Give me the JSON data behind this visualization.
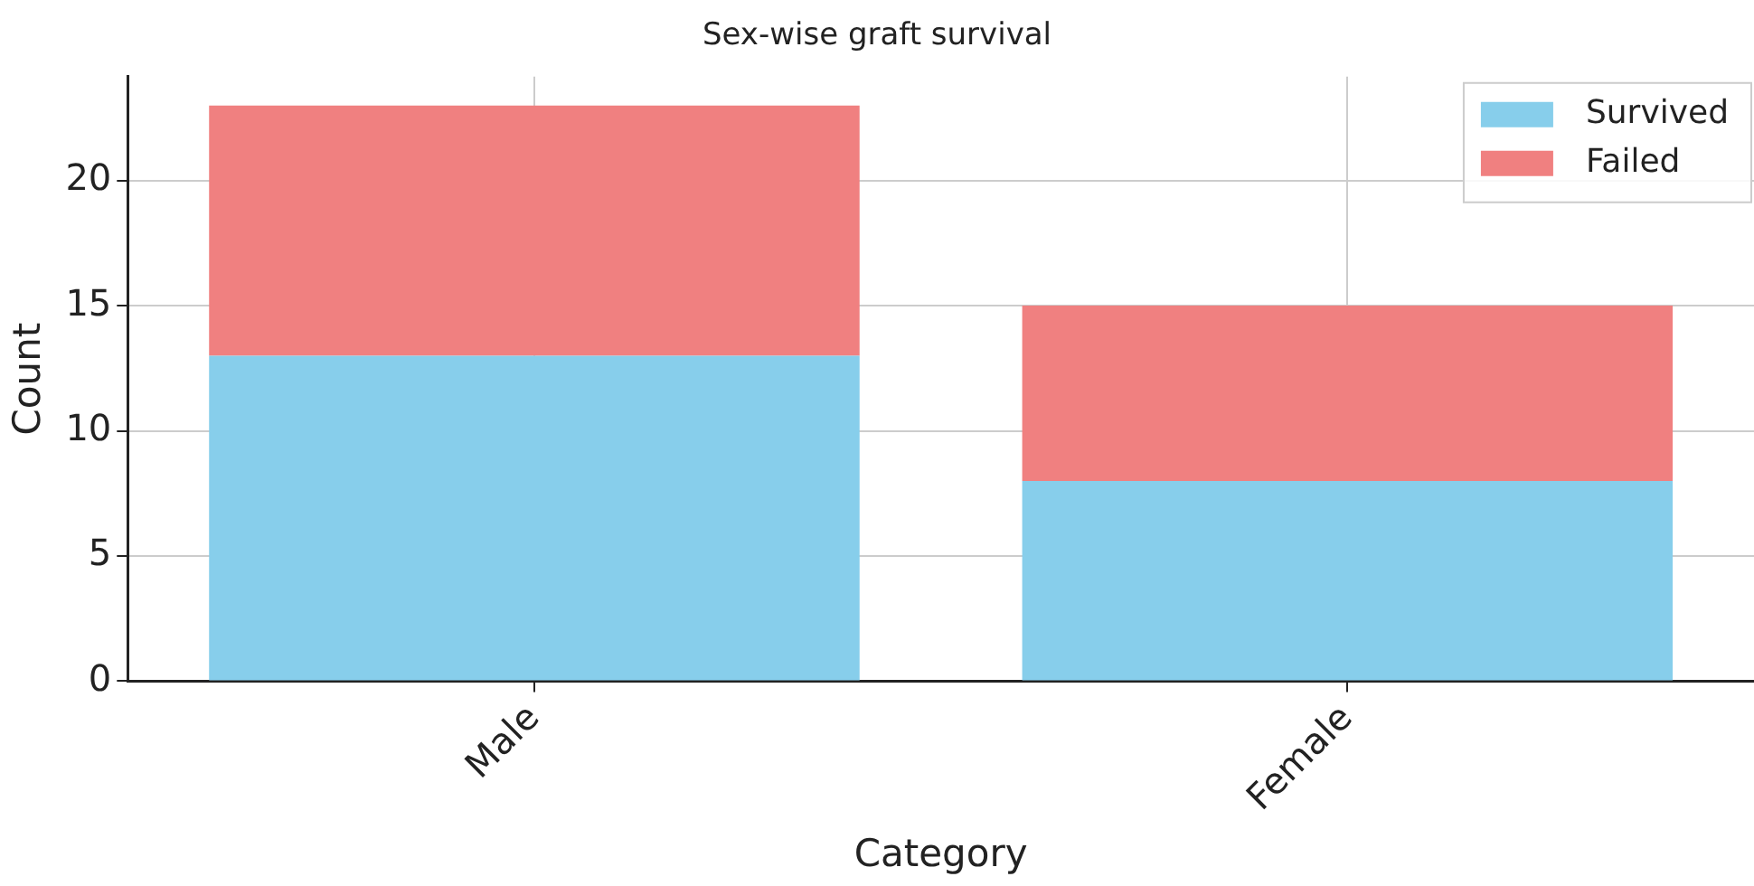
{
  "chart_data": {
    "type": "bar",
    "title": "Sex-wise graft survival",
    "xlabel": "Category",
    "ylabel": "Count",
    "categories": [
      "Male",
      "Female"
    ],
    "series": [
      {
        "name": "Survived",
        "color": "#87ceeb",
        "values": [
          13,
          8
        ]
      },
      {
        "name": "Failed",
        "color": "#f08080",
        "values": [
          10,
          7
        ]
      }
    ],
    "stacked": true,
    "ylim": [
      0,
      24.15
    ],
    "yticks": [
      0,
      5,
      10,
      15,
      20
    ],
    "grid": true,
    "legend": "top right"
  }
}
